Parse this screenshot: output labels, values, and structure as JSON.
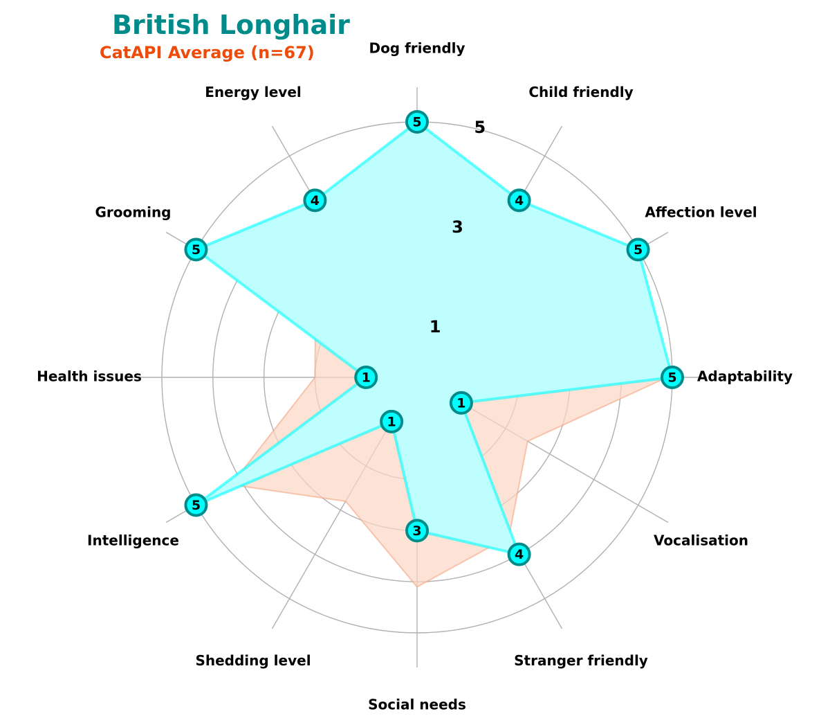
{
  "chart_data": {
    "type": "radar",
    "title": "British Longhair",
    "subtitle": "CatAPI Average (n=67)",
    "categories": [
      "Adaptability",
      "Affection level",
      "Child friendly",
      "Dog friendly",
      "Energy level",
      "Grooming",
      "Health issues",
      "Intelligence",
      "Shedding level",
      "Social needs",
      "Stranger friendly",
      "Vocalisation"
    ],
    "rlim": [
      0,
      5
    ],
    "ring_values": [
      1,
      2,
      3,
      4,
      5
    ],
    "ring_tick_labels": [
      "1",
      "3",
      "5"
    ],
    "grid": true,
    "series": [
      {
        "values": [
          5,
          5,
          4,
          5,
          4,
          5,
          1,
          5,
          1,
          3,
          4,
          1
        ],
        "color": "#00ffff",
        "fill": "#bffefe",
        "marker_edge": "#008b8b",
        "show_value_labels": true
      },
      {
        "name": "CatAPI Average (n=67)",
        "values": [
          4.9,
          4.7,
          4.0,
          4.6,
          3.8,
          2.3,
          2.0,
          4.2,
          2.8,
          4.1,
          3.6,
          2.5
        ],
        "color": "#f4a582",
        "fill": "#fcd5c4"
      }
    ]
  },
  "colors": {
    "title": "#008b8b",
    "subtitle": "#ee4b0a",
    "grid": "#b0b0b0"
  }
}
